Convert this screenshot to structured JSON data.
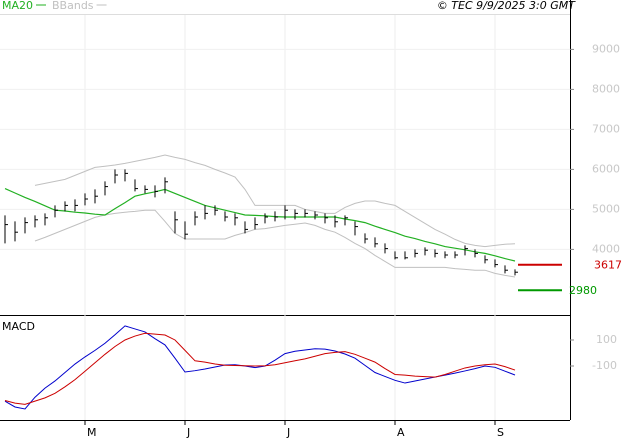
{
  "chart_data": [
    {
      "type": "ohlc",
      "credit": "© TEC 9/9/2025 3:0 GMT",
      "categories": [
        null,
        null,
        null,
        null,
        null,
        null,
        null,
        null,
        "M",
        null,
        null,
        null,
        null,
        null,
        null,
        null,
        null,
        null,
        "J",
        null,
        null,
        null,
        null,
        null,
        null,
        null,
        null,
        null,
        "J",
        null,
        null,
        null,
        null,
        null,
        null,
        null,
        null,
        null,
        null,
        "A",
        null,
        null,
        null,
        null,
        null,
        null,
        null,
        null,
        null,
        "S",
        null,
        null
      ],
      "high": [
        4850,
        4700,
        4800,
        4850,
        4900,
        5100,
        5200,
        5250,
        5400,
        5500,
        5700,
        6000,
        6000,
        5750,
        5600,
        5600,
        5800,
        4950,
        4700,
        4950,
        5100,
        5100,
        4950,
        4900,
        4700,
        4800,
        4900,
        4950,
        5100,
        5000,
        5000,
        4950,
        4900,
        4850,
        4850,
        4700,
        4400,
        4300,
        4150,
        3950,
        3950,
        4000,
        4050,
        4000,
        3950,
        3950,
        4100,
        4000,
        3850,
        3750,
        3600,
        3500
      ],
      "low": [
        4150,
        4200,
        4400,
        4550,
        4600,
        4800,
        4950,
        4950,
        5100,
        5150,
        5350,
        5650,
        5700,
        5450,
        5400,
        5300,
        5400,
        4400,
        4250,
        4600,
        4750,
        4850,
        4700,
        4600,
        4400,
        4500,
        4650,
        4700,
        4750,
        4750,
        4800,
        4750,
        4650,
        4550,
        4600,
        4350,
        4150,
        4050,
        3900,
        3750,
        3750,
        3800,
        3850,
        3800,
        3780,
        3780,
        3850,
        3800,
        3650,
        3550,
        3400,
        3350
      ],
      "close": [
        4620,
        4430,
        4670,
        4740,
        4790,
        4980,
        5100,
        5100,
        5260,
        5330,
        5570,
        5860,
        5900,
        5520,
        5500,
        5450,
        5690,
        4740,
        4380,
        4810,
        4900,
        4980,
        4810,
        4790,
        4500,
        4620,
        4810,
        4810,
        4980,
        4900,
        4900,
        4860,
        4790,
        4690,
        4790,
        4570,
        4260,
        4140,
        4020,
        3790,
        3790,
        3900,
        3980,
        3900,
        3860,
        3860,
        4020,
        3900,
        3740,
        3620,
        3480,
        3430
      ],
      "bar_color": "#000000",
      "series": [
        {
          "name": "MA20",
          "color": "#22b022",
          "values": [
            5520,
            5410,
            5300,
            5200,
            5090,
            4980,
            4960,
            4930,
            4910,
            4880,
            4860,
            5020,
            5170,
            5330,
            5390,
            5440,
            5500,
            5400,
            5300,
            5200,
            5100,
            5040,
            4980,
            4920,
            4860,
            4850,
            4840,
            4820,
            4810,
            4810,
            4810,
            4810,
            4810,
            4810,
            4760,
            4720,
            4670,
            4580,
            4500,
            4420,
            4330,
            4270,
            4200,
            4140,
            4070,
            4030,
            3990,
            3940,
            3900,
            3840,
            3770,
            3710
          ]
        }
      ],
      "bbands": {
        "name": "BBands",
        "color": "#c0c0c0",
        "upper": [
          null,
          null,
          null,
          5600,
          5650,
          5700,
          5750,
          5850,
          5950,
          6050,
          6080,
          6110,
          6150,
          6200,
          6250,
          6300,
          6360,
          6300,
          6250,
          6170,
          6100,
          6000,
          5910,
          5810,
          5500,
          5100,
          5100,
          5100,
          5100,
          5100,
          5000,
          4950,
          4900,
          4900,
          5050,
          5150,
          5210,
          5210,
          5150,
          5100,
          4950,
          4800,
          4650,
          4500,
          4380,
          4250,
          4150,
          4100,
          4070,
          4100,
          4130,
          4140
        ],
        "lower": [
          null,
          null,
          null,
          4210,
          4300,
          4400,
          4500,
          4600,
          4700,
          4800,
          4860,
          4900,
          4930,
          4950,
          4980,
          4980,
          4700,
          4400,
          4260,
          4260,
          4260,
          4260,
          4260,
          4350,
          4420,
          4500,
          4520,
          4560,
          4600,
          4630,
          4660,
          4600,
          4500,
          4430,
          4300,
          4150,
          4020,
          3850,
          3700,
          3550,
          3550,
          3550,
          3550,
          3550,
          3550,
          3520,
          3500,
          3480,
          3480,
          3400,
          3350,
          3310
        ]
      },
      "levels": [
        {
          "value": 3617,
          "color": "#cc0000"
        },
        {
          "value": 2980,
          "color": "#009900"
        }
      ],
      "ylim": [
        2360,
        9860
      ],
      "yticks": [
        4000,
        5000,
        6000,
        7000,
        8000,
        9000
      ],
      "grid": true
    },
    {
      "type": "line",
      "title": "MACD",
      "series": [
        {
          "color": "#0000cc",
          "values": [
            -370,
            -415,
            -430,
            -340,
            -270,
            -215,
            -150,
            -85,
            -30,
            20,
            75,
            140,
            208,
            185,
            162,
            110,
            62,
            -40,
            -146,
            -136,
            -123,
            -108,
            -92,
            -90,
            -100,
            -112,
            -100,
            -55,
            -5,
            13,
            23,
            33,
            30,
            15,
            -8,
            -40,
            -95,
            -150,
            -180,
            -210,
            -231,
            -215,
            -200,
            -185,
            -170,
            -155,
            -138,
            -120,
            -100,
            -110,
            -140,
            -169
          ]
        },
        {
          "color": "#cc0000",
          "values": [
            -365,
            -385,
            -395,
            -370,
            -345,
            -310,
            -260,
            -205,
            -140,
            -75,
            -10,
            50,
            100,
            130,
            152,
            145,
            138,
            100,
            20,
            -60,
            -70,
            -85,
            -94,
            -96,
            -98,
            -100,
            -98,
            -90,
            -75,
            -60,
            -45,
            -25,
            -5,
            5,
            10,
            -10,
            -40,
            -70,
            -120,
            -165,
            -170,
            -178,
            -182,
            -185,
            -165,
            -140,
            -115,
            -100,
            -90,
            -85,
            -105,
            -131
          ]
        }
      ],
      "ylim": [
        -515,
        292
      ],
      "yticks": [
        100,
        -100
      ],
      "grid": false
    }
  ]
}
